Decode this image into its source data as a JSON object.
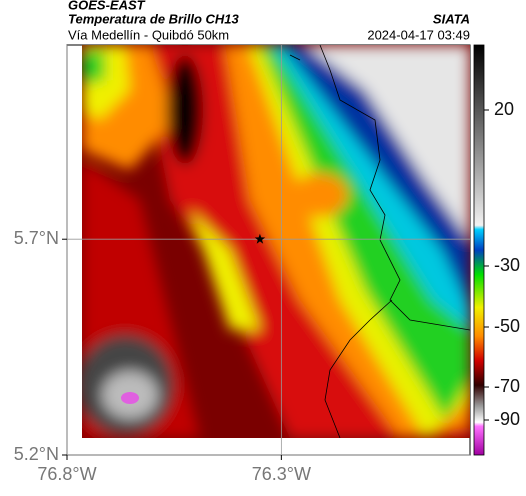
{
  "header": {
    "title": "GOES-EAST",
    "subtitle": "Temperatura de Brillo CH13",
    "source": "SIATA",
    "route": "Vía Medellín - Quibdó 50km",
    "timestamp": "2024-04-17 03:49"
  },
  "map": {
    "lonlim": [
      -76.8,
      -75.86
    ],
    "latlim": [
      5.2,
      6.15
    ],
    "lonticks": [
      {
        "value": -76.8,
        "label": "76.8°W"
      },
      {
        "value": -76.3,
        "label": "76.3°W"
      }
    ],
    "latticks": [
      {
        "value": 5.7,
        "label": "5.7°N"
      },
      {
        "value": 5.2,
        "label": "5.2°N"
      }
    ],
    "grid": true,
    "marker": {
      "lon": -76.35,
      "lat": 5.7
    }
  },
  "colorbar": {
    "ticks": [
      20,
      -30,
      -50,
      -70,
      -90
    ]
  }
}
